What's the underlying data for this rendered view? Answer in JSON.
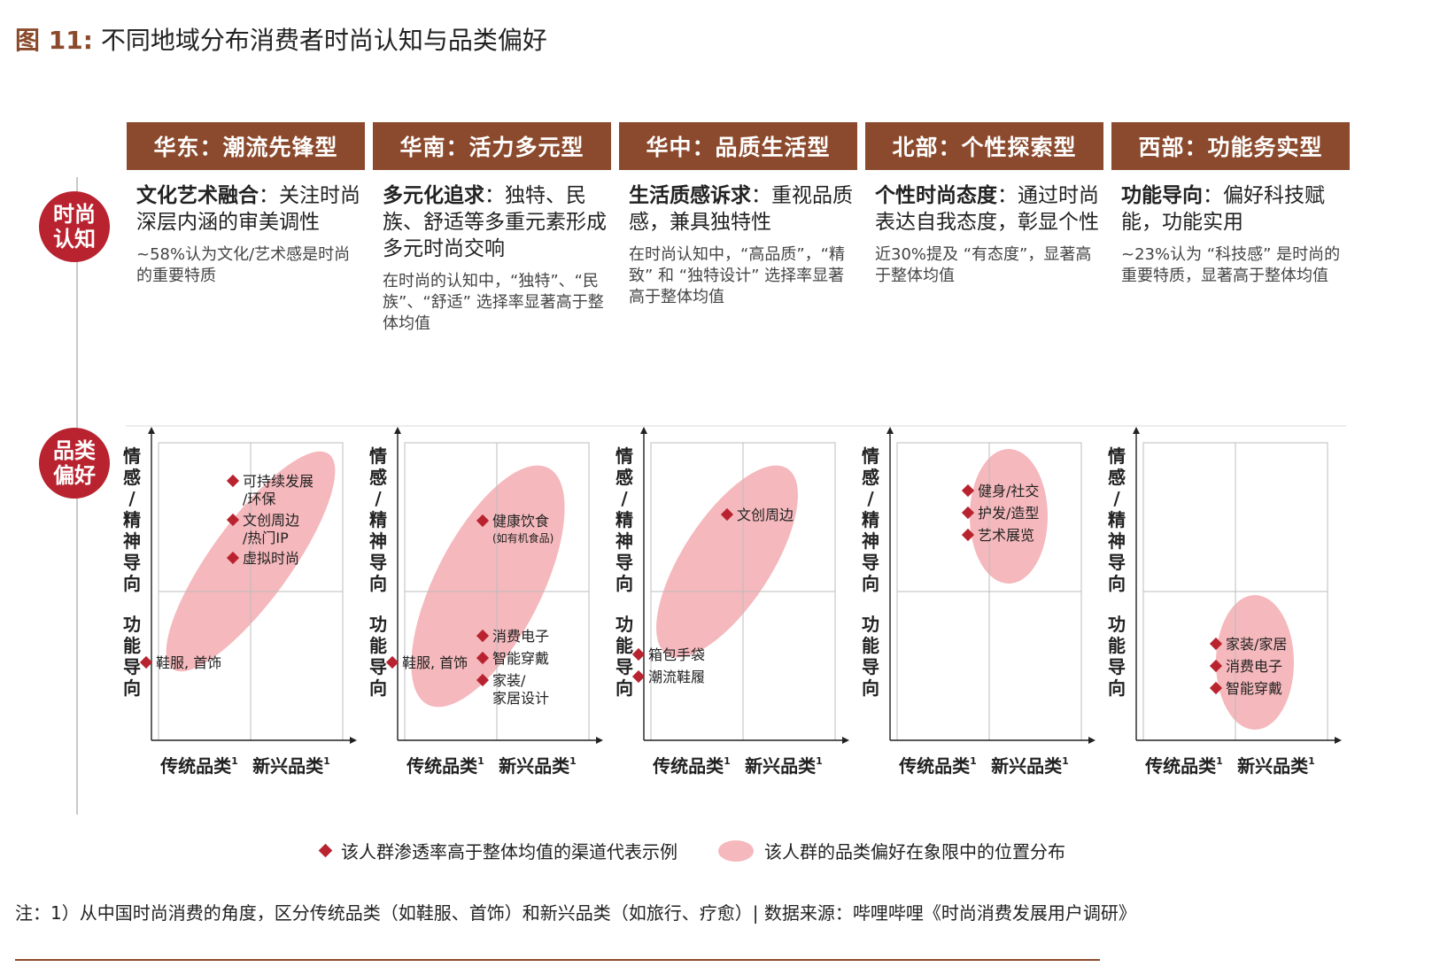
{
  "figure": {
    "number": "图 11:",
    "title": "不同地域分布消费者时尚认知与品类偏好"
  },
  "side_labels": {
    "perception": "时尚\n认知",
    "preference": "品类\n偏好"
  },
  "columns": [
    {
      "header": "华东：潮流先锋型",
      "keyword": "文化艺术融合",
      "desc": "：关注时尚深层内涵的审美调性",
      "detail": "~58%认为文化/艺术感是时尚的重要特质"
    },
    {
      "header": "华南：活力多元型",
      "keyword": "多元化追求",
      "desc": "：独特、民族、舒适等多重元素形成多元时尚交响",
      "detail": "在时尚的认知中，“独特”、“民族”、“舒适” 选择率显著高于整体均值"
    },
    {
      "header": "华中：品质生活型",
      "keyword": "生活质感诉求",
      "desc": "：重视品质感，兼具独特性",
      "detail": "在时尚认知中，“高品质”，“精致” 和 “独特设计” 选择率显著高于整体均值"
    },
    {
      "header": "北部：个性探索型",
      "keyword": "个性时尚态度",
      "desc": "：通过时尚表达自我态度，彰显个性",
      "detail": "近30%提及 “有态度”，显著高于整体均值"
    },
    {
      "header": "西部：功能务实型",
      "keyword": "功能导向",
      "desc": "：偏好科技赋能，功能实用",
      "detail": "~23%认为 “科技感” 是时尚的重要特质，显著高于整体均值"
    }
  ],
  "chart_data": [
    {
      "type": "scatter",
      "region": "华东",
      "x_categories": [
        "传统品类",
        "新兴品类"
      ],
      "x_superscript": "1",
      "y_categories": [
        "功能导向",
        "情感/精神导向"
      ],
      "ellipse": {
        "from": [
          "传统品类",
          "功能导向"
        ],
        "to": [
          "新兴品类",
          "情感/精神导向"
        ]
      },
      "points": [
        {
          "label": "可持续发展\n/环保",
          "x": "新兴品类",
          "y": "情感/精神导向"
        },
        {
          "label": "文创周边\n/热门IP",
          "x": "新兴品类",
          "y": "情感/精神导向"
        },
        {
          "label": "虚拟时尚",
          "x": "新兴品类",
          "y": "情感/精神导向"
        },
        {
          "label": "鞋服, 首饰",
          "x": "传统品类",
          "y": "功能导向"
        }
      ]
    },
    {
      "type": "scatter",
      "region": "华南",
      "x_categories": [
        "传统品类",
        "新兴品类"
      ],
      "x_superscript": "1",
      "y_categories": [
        "功能导向",
        "情感/精神导向"
      ],
      "ellipse": {
        "from": [
          "传统品类",
          "功能导向"
        ],
        "to": [
          "新兴品类",
          "情感/精神导向"
        ]
      },
      "points": [
        {
          "label": "健康饮食",
          "sublabel": "(如有机食品)",
          "x": "新兴品类",
          "y": "情感/精神导向"
        },
        {
          "label": "消费电子",
          "x": "新兴品类",
          "y": "功能导向"
        },
        {
          "label": "智能穿戴",
          "x": "新兴品类",
          "y": "功能导向"
        },
        {
          "label": "家装/\n家居设计",
          "x": "新兴品类",
          "y": "功能导向"
        },
        {
          "label": "鞋服, 首饰",
          "x": "传统品类",
          "y": "功能导向"
        }
      ]
    },
    {
      "type": "scatter",
      "region": "华中",
      "x_categories": [
        "传统品类",
        "新兴品类"
      ],
      "x_superscript": "1",
      "y_categories": [
        "功能导向",
        "情感/精神导向"
      ],
      "ellipse": {
        "from": [
          "传统品类",
          "功能导向"
        ],
        "to": [
          "新兴品类",
          "情感/精神导向"
        ]
      },
      "points": [
        {
          "label": "文创周边",
          "x": "新兴品类",
          "y": "情感/精神导向"
        },
        {
          "label": "箱包手袋",
          "x": "传统品类",
          "y": "功能导向"
        },
        {
          "label": "潮流鞋履",
          "x": "传统品类",
          "y": "功能导向"
        }
      ]
    },
    {
      "type": "scatter",
      "region": "北部",
      "x_categories": [
        "传统品类",
        "新兴品类"
      ],
      "x_superscript": "1",
      "y_categories": [
        "功能导向",
        "情感/精神导向"
      ],
      "ellipse": {
        "from": [
          "新兴品类",
          "情感/精神导向"
        ],
        "to": [
          "新兴品类",
          "情感/精神导向"
        ]
      },
      "points": [
        {
          "label": "健身/社交",
          "x": "新兴品类",
          "y": "情感/精神导向"
        },
        {
          "label": "护发/造型",
          "x": "新兴品类",
          "y": "情感/精神导向"
        },
        {
          "label": "艺术展览",
          "x": "新兴品类",
          "y": "情感/精神导向"
        }
      ]
    },
    {
      "type": "scatter",
      "region": "西部",
      "x_categories": [
        "传统品类",
        "新兴品类"
      ],
      "x_superscript": "1",
      "y_categories": [
        "功能导向",
        "情感/精神导向"
      ],
      "ellipse": {
        "from": [
          "新兴品类",
          "功能导向"
        ],
        "to": [
          "新兴品类",
          "功能导向"
        ]
      },
      "points": [
        {
          "label": "家装/家居",
          "x": "新兴品类",
          "y": "功能导向"
        },
        {
          "label": "消费电子",
          "x": "新兴品类",
          "y": "功能导向"
        },
        {
          "label": "智能穿戴",
          "x": "新兴品类",
          "y": "功能导向"
        }
      ]
    }
  ],
  "legend": {
    "point": "该人群渗透率高于整体均值的渠道代表示例",
    "area": "该人群的品类偏好在象限中的位置分布"
  },
  "note": "注：1）从中国时尚消费的角度，区分传统品类（如鞋服、首饰）和新兴品类（如旅行、疗愈）| 数据来源：哔哩哔哩《时尚消费发展用户调研》",
  "colors": {
    "header_bg": "#8b4a2d",
    "accent_red": "#b8232f",
    "ellipse_fill": "#f5b8bc",
    "grid": "#bdbdbd"
  }
}
